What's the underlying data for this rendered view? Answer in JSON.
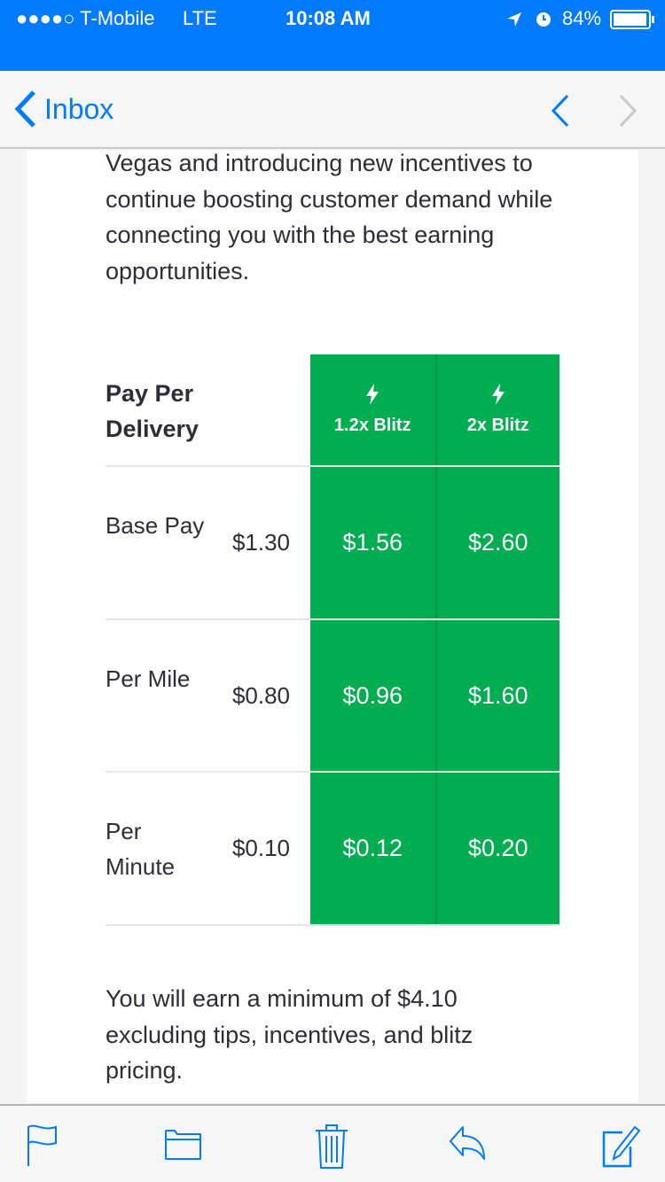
{
  "status_bar": {
    "carrier": "●●●●○ T-Mobile",
    "network": "LTE",
    "time": "10:08 AM",
    "battery": "84%"
  },
  "nav": {
    "back_label": "Inbox"
  },
  "email": {
    "intro": "Vegas and introducing new incentives to continue boosting customer demand while connecting you with the best earning opportunities.",
    "table": {
      "title": "Pay Per Delivery",
      "columns": [
        {
          "label": "1.2x Blitz",
          "icon": "lightning-icon"
        },
        {
          "label": "2x Blitz",
          "icon": "lightning-icon"
        }
      ],
      "rows": [
        {
          "label": "Base Pay",
          "base": "$1.30",
          "blitz12": "$1.56",
          "blitz2": "$2.60"
        },
        {
          "label": "Per Mile",
          "base": "$0.80",
          "blitz12": "$0.96",
          "blitz2": "$1.60"
        },
        {
          "label": "Per Minute",
          "base": "$0.10",
          "blitz12": "$0.12",
          "blitz2": "$0.20"
        }
      ],
      "accent": "#00ad50"
    },
    "footer": "You will earn a minimum of $4.10 excluding tips, incentives, and blitz pricing."
  },
  "colors": {
    "ios_blue": "#007aff"
  }
}
